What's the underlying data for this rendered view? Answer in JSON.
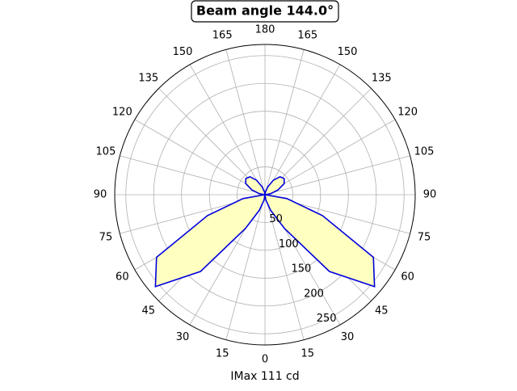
{
  "chart_data": {
    "type": "polar",
    "title": "Beam angle 144.0°",
    "xlabel": "IMax 111 cd",
    "theta": [
      0,
      10,
      20,
      30,
      40,
      50,
      60,
      70,
      80,
      90,
      100,
      110,
      120,
      130,
      140,
      150,
      160,
      170,
      180,
      190,
      200,
      210,
      220,
      230,
      240,
      250,
      260,
      270,
      280,
      290,
      300,
      310,
      320,
      330,
      340,
      350,
      360
    ],
    "r": [
      0,
      10,
      30,
      70,
      180,
      257,
      225,
      110,
      40,
      0,
      10,
      25,
      40,
      45,
      42,
      30,
      15,
      5,
      0,
      5,
      15,
      30,
      42,
      45,
      40,
      25,
      10,
      0,
      40,
      110,
      225,
      257,
      180,
      70,
      30,
      10,
      0
    ],
    "line_color": "#0000dd",
    "fill_color": "#ffffc0",
    "rlim": [
      0,
      270
    ],
    "rticks": [
      50,
      100,
      150,
      200,
      250
    ],
    "thetaticks": [
      0,
      15,
      30,
      45,
      60,
      75,
      90,
      105,
      120,
      135,
      150,
      165,
      180,
      {
        "value": 195,
        "label": "165"
      },
      {
        "value": 210,
        "label": "150"
      },
      {
        "value": 225,
        "label": "135"
      },
      {
        "value": 240,
        "label": "120"
      },
      {
        "value": 255,
        "label": "105"
      },
      {
        "value": 270,
        "label": "90"
      },
      {
        "value": 285,
        "label": "75"
      },
      {
        "value": 300,
        "label": "60"
      },
      {
        "value": 315,
        "label": "45"
      },
      {
        "value": 330,
        "label": "30"
      },
      {
        "value": 345,
        "label": "15"
      }
    ],
    "grid": true
  }
}
